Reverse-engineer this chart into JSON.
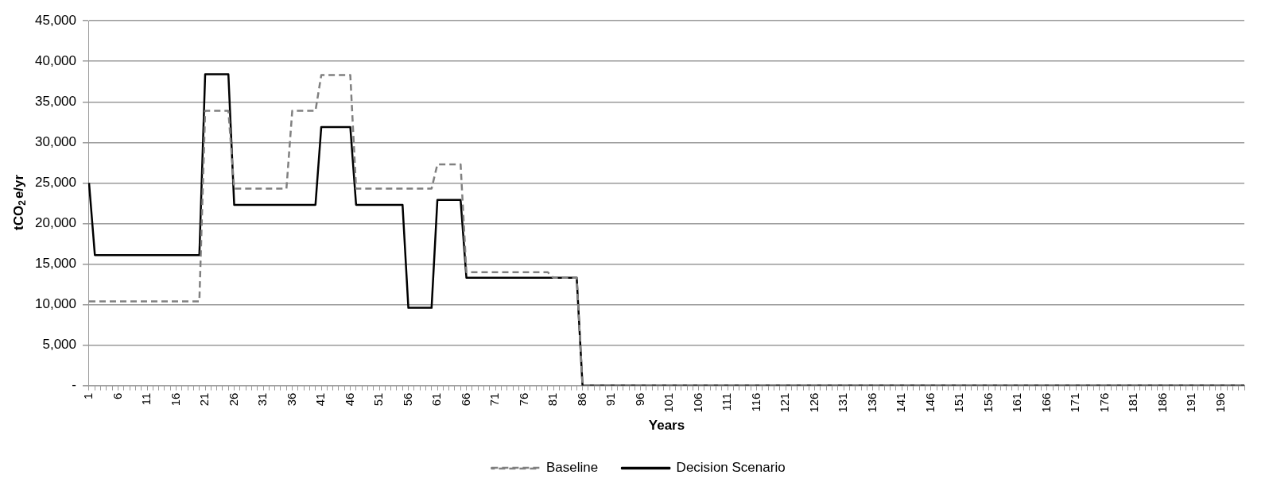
{
  "chart_data": {
    "type": "line",
    "xlabel": "Years",
    "ylabel": "tCO$_{2}$e/yr",
    "categories": [
      "1",
      null,
      null,
      null,
      null,
      "6",
      null,
      null,
      null,
      null,
      "11",
      null,
      null,
      null,
      null,
      "16",
      null,
      null,
      null,
      null,
      "21",
      null,
      null,
      null,
      null,
      "26",
      null,
      null,
      null,
      null,
      "31",
      null,
      null,
      null,
      null,
      "36",
      null,
      null,
      null,
      null,
      "41",
      null,
      null,
      null,
      null,
      "46",
      null,
      null,
      null,
      null,
      "51",
      null,
      null,
      null,
      null,
      "56",
      null,
      null,
      null,
      null,
      "61",
      null,
      null,
      null,
      null,
      "66",
      null,
      null,
      null,
      null,
      "71",
      null,
      null,
      null,
      null,
      "76",
      null,
      null,
      null,
      null,
      "81",
      null,
      null,
      null,
      null,
      "86",
      null,
      null,
      null,
      null,
      "91",
      null,
      null,
      null,
      null,
      "96",
      null,
      null,
      null,
      null,
      "101",
      null,
      null,
      null,
      null,
      "106",
      null,
      null,
      null,
      null,
      "111",
      null,
      null,
      null,
      null,
      "116",
      null,
      null,
      null,
      null,
      "121",
      null,
      null,
      null,
      null,
      "126",
      null,
      null,
      null,
      null,
      "131",
      null,
      null,
      null,
      null,
      "136",
      null,
      null,
      null,
      null,
      "141",
      null,
      null,
      null,
      null,
      "146",
      null,
      null,
      null,
      null,
      "151",
      null,
      null,
      null,
      null,
      "156",
      null,
      null,
      null,
      null,
      "161",
      null,
      null,
      null,
      null,
      "166",
      null,
      null,
      null,
      null,
      "171",
      null,
      null,
      null,
      null,
      "176",
      null,
      null,
      null,
      null,
      "181",
      null,
      null,
      null,
      null,
      "186",
      null,
      null,
      null,
      null,
      "191",
      null,
      null,
      null,
      null,
      "196",
      null,
      null,
      null,
      null
    ],
    "series": [
      {
        "name": "Baseline",
        "color": "#808080",
        "line_style": "dashed",
        "values": [
          10400,
          10400,
          10400,
          10400,
          10400,
          10400,
          10400,
          10400,
          10400,
          10400,
          10400,
          10400,
          10400,
          10400,
          10400,
          10400,
          10400,
          10400,
          10400,
          10400,
          33900,
          33900,
          33900,
          33900,
          33900,
          24300,
          24300,
          24300,
          24300,
          24300,
          24300,
          24300,
          24300,
          24300,
          24300,
          33900,
          33900,
          33900,
          33900,
          33900,
          38300,
          38300,
          38300,
          38300,
          38300,
          38300,
          24300,
          24300,
          24300,
          24300,
          24300,
          24300,
          24300,
          24300,
          24300,
          24300,
          24300,
          24300,
          24300,
          24300,
          27300,
          27300,
          27300,
          27300,
          27300,
          14000,
          14000,
          14000,
          14000,
          14000,
          14000,
          14000,
          14000,
          14000,
          14000,
          14000,
          14000,
          14000,
          14000,
          14000,
          13300,
          13300,
          13300,
          13300,
          13300,
          0,
          0,
          0,
          0,
          0,
          0,
          0,
          0,
          0,
          0,
          0,
          0,
          0,
          0,
          0,
          0,
          0,
          0,
          0,
          0,
          0,
          0,
          0,
          0,
          0,
          0,
          0,
          0,
          0,
          0,
          0,
          0,
          0,
          0,
          0,
          0,
          0,
          0,
          0,
          0,
          0,
          0,
          0,
          0,
          0,
          0,
          0,
          0,
          0,
          0,
          0,
          0,
          0,
          0,
          0,
          0,
          0,
          0,
          0,
          0,
          0,
          0,
          0,
          0,
          0,
          0,
          0,
          0,
          0,
          0,
          0,
          0,
          0,
          0,
          0,
          0,
          0,
          0,
          0,
          0,
          0,
          0,
          0,
          0,
          0,
          0,
          0,
          0,
          0,
          0,
          0,
          0,
          0,
          0,
          0,
          0,
          0,
          0,
          0,
          0,
          0,
          0,
          0,
          0,
          0,
          0,
          0,
          0,
          0,
          0,
          0,
          0,
          0,
          0,
          0
        ]
      },
      {
        "name": "Decision Scenario",
        "color": "#000000",
        "line_style": "solid",
        "values": [
          25000,
          16100,
          16100,
          16100,
          16100,
          16100,
          16100,
          16100,
          16100,
          16100,
          16100,
          16100,
          16100,
          16100,
          16100,
          16100,
          16100,
          16100,
          16100,
          16100,
          38400,
          38400,
          38400,
          38400,
          38400,
          22300,
          22300,
          22300,
          22300,
          22300,
          22300,
          22300,
          22300,
          22300,
          22300,
          22300,
          22300,
          22300,
          22300,
          22300,
          31900,
          31900,
          31900,
          31900,
          31900,
          31900,
          22300,
          22300,
          22300,
          22300,
          22300,
          22300,
          22300,
          22300,
          22300,
          9600,
          9600,
          9600,
          9600,
          9600,
          22900,
          22900,
          22900,
          22900,
          22900,
          13300,
          13300,
          13300,
          13300,
          13300,
          13300,
          13300,
          13300,
          13300,
          13300,
          13300,
          13300,
          13300,
          13300,
          13300,
          13300,
          13300,
          13300,
          13300,
          13300,
          0,
          0,
          0,
          0,
          0,
          0,
          0,
          0,
          0,
          0,
          0,
          0,
          0,
          0,
          0,
          0,
          0,
          0,
          0,
          0,
          0,
          0,
          0,
          0,
          0,
          0,
          0,
          0,
          0,
          0,
          0,
          0,
          0,
          0,
          0,
          0,
          0,
          0,
          0,
          0,
          0,
          0,
          0,
          0,
          0,
          0,
          0,
          0,
          0,
          0,
          0,
          0,
          0,
          0,
          0,
          0,
          0,
          0,
          0,
          0,
          0,
          0,
          0,
          0,
          0,
          0,
          0,
          0,
          0,
          0,
          0,
          0,
          0,
          0,
          0,
          0,
          0,
          0,
          0,
          0,
          0,
          0,
          0,
          0,
          0,
          0,
          0,
          0,
          0,
          0,
          0,
          0,
          0,
          0,
          0,
          0,
          0,
          0,
          0,
          0,
          0,
          0,
          0,
          0,
          0,
          0,
          0,
          0,
          0,
          0,
          0,
          0,
          0,
          0,
          0
        ]
      }
    ],
    "ylim": [
      0,
      45000
    ],
    "yticks": [
      {
        "value": 0,
        "label": "-"
      },
      {
        "value": 5000,
        "label": "5,000"
      },
      {
        "value": 10000,
        "label": "10,000"
      },
      {
        "value": 15000,
        "label": "15,000"
      },
      {
        "value": 20000,
        "label": "20,000"
      },
      {
        "value": 25000,
        "label": "25,000"
      },
      {
        "value": 30000,
        "label": "30,000"
      },
      {
        "value": 35000,
        "label": "35,000"
      },
      {
        "value": 40000,
        "label": "40,000"
      },
      {
        "value": 45000,
        "label": "45,000"
      }
    ],
    "grid": "y",
    "legend": "bottom",
    "marker": "none"
  }
}
